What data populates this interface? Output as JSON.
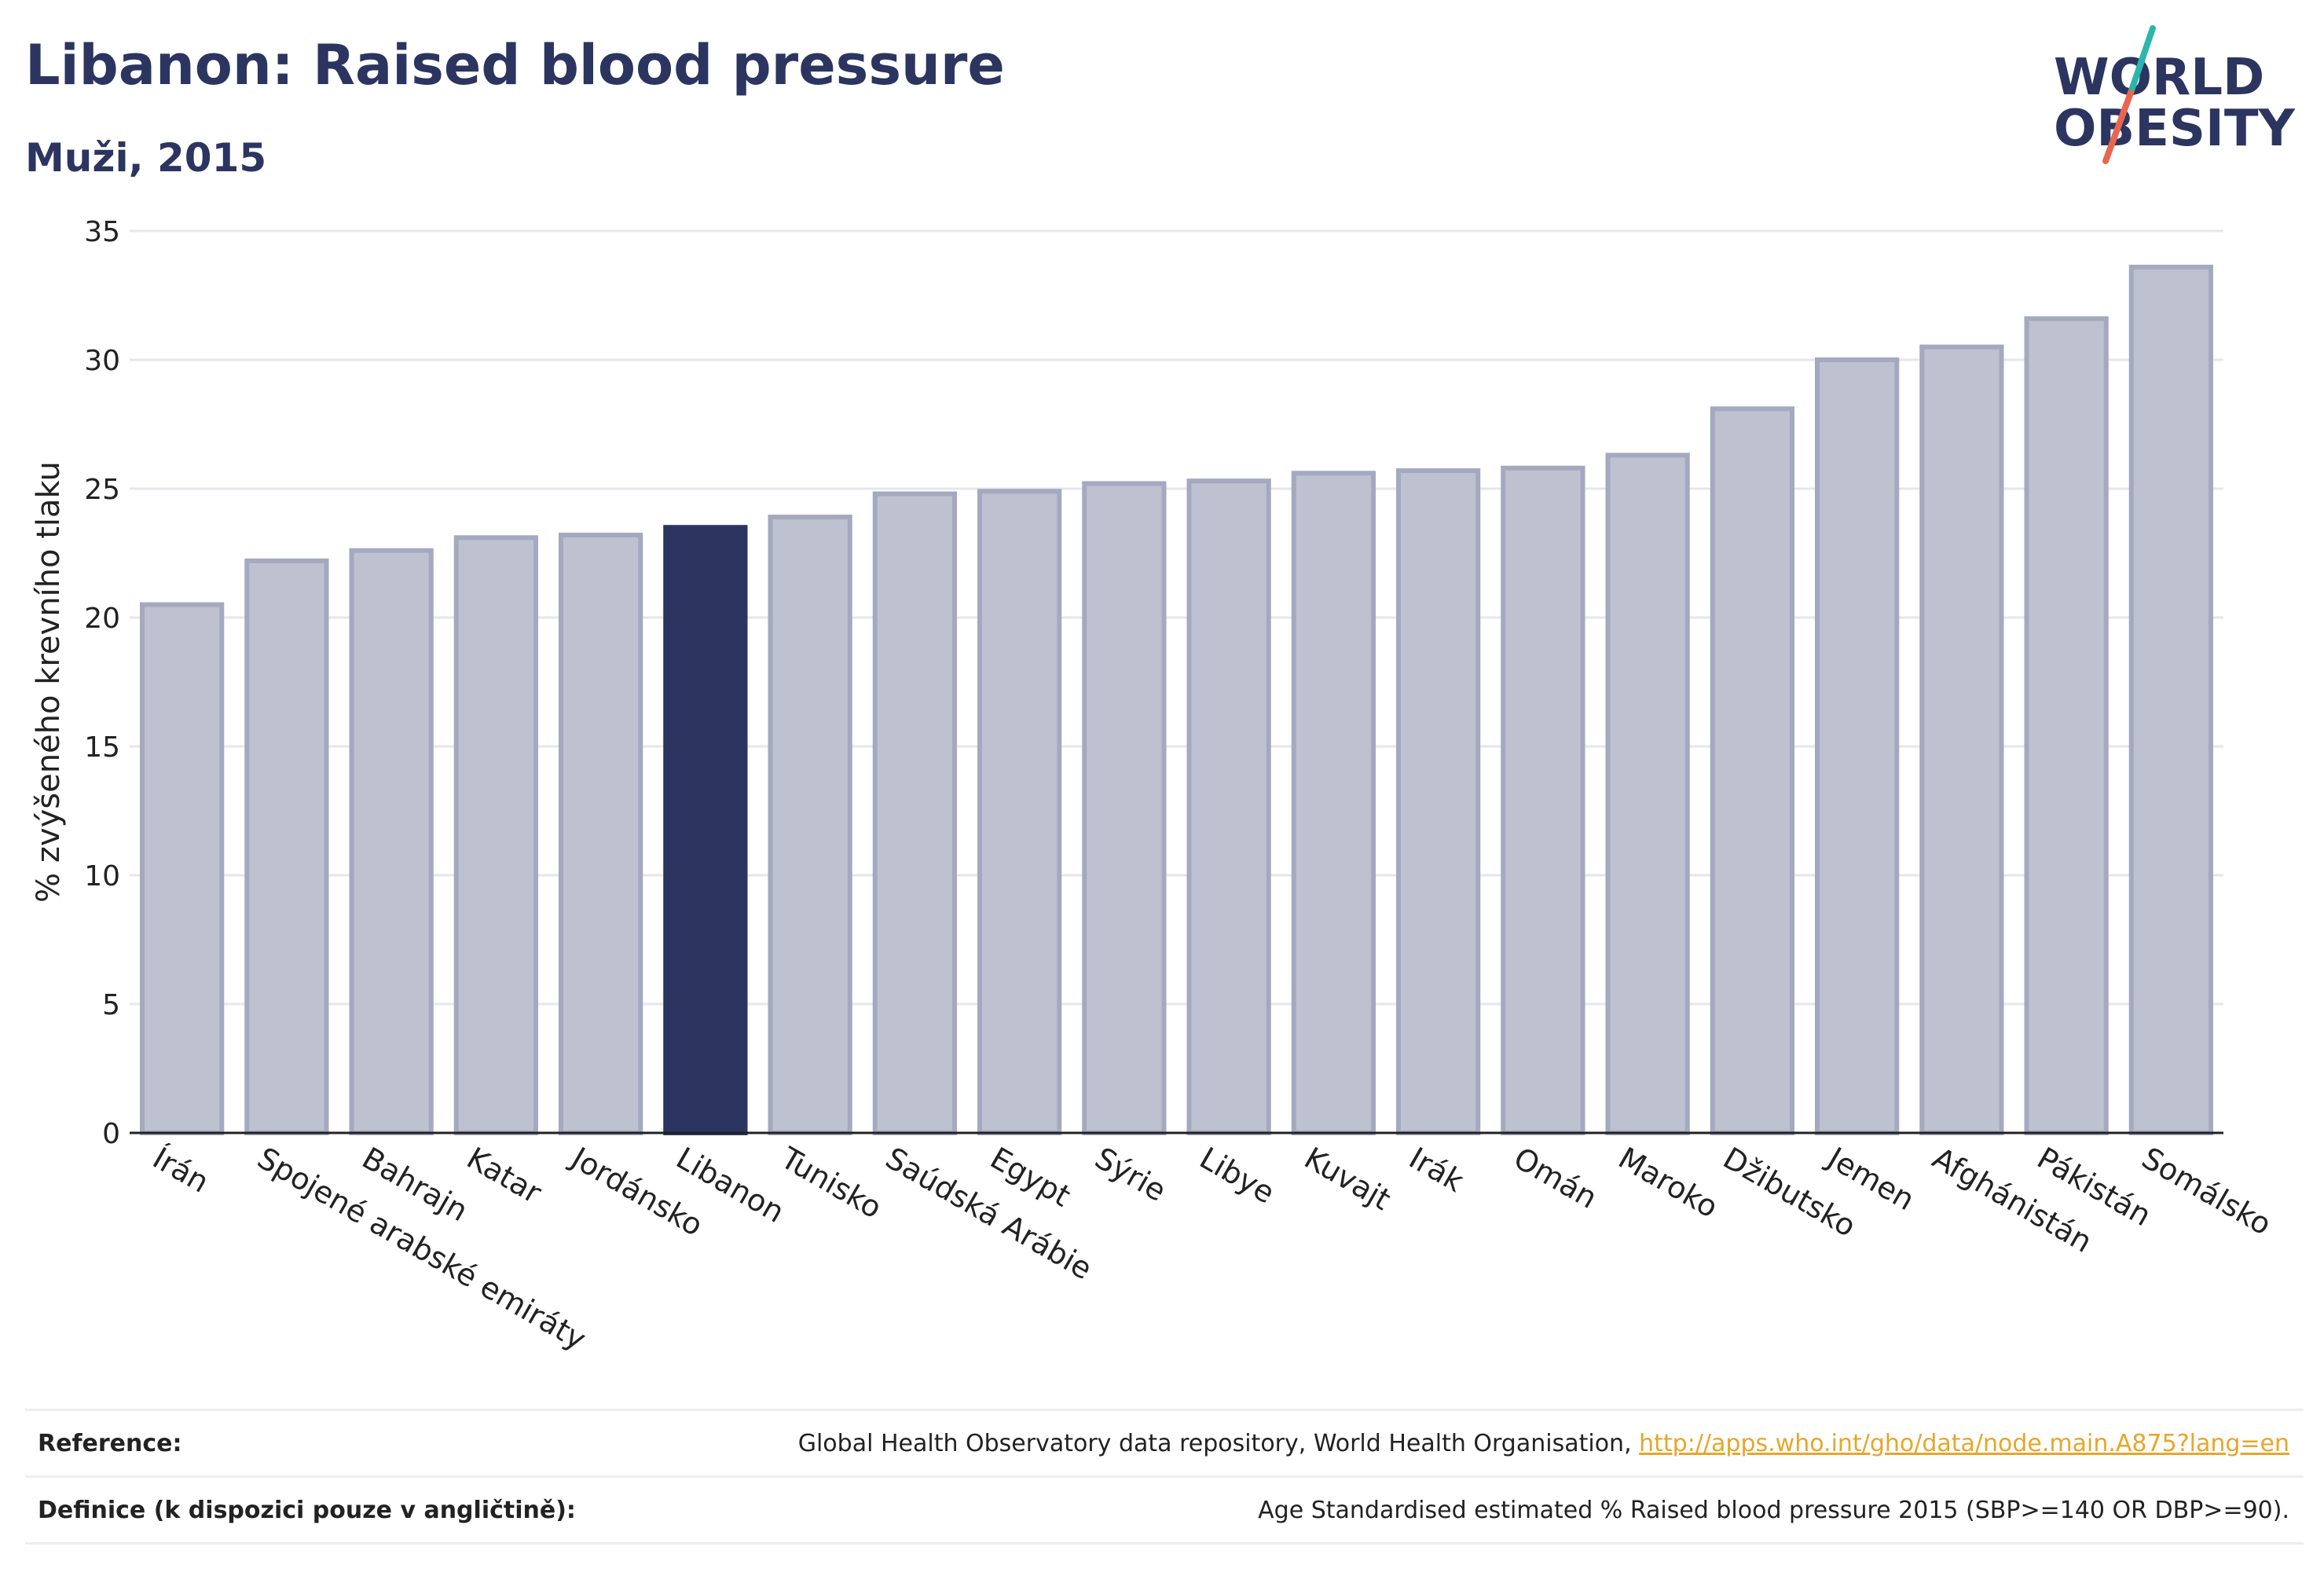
{
  "header": {
    "title": "Libanon: Raised blood pressure",
    "subtitle": "Muži, 2015"
  },
  "logo": {
    "line1": "WORLD",
    "line2": "OBESITY",
    "colors": {
      "text": "#2b3560",
      "slash_top": "#2bb5b0",
      "slash_bottom": "#e8664f"
    }
  },
  "chart_data": {
    "type": "bar",
    "title": "Libanon: Raised blood pressure",
    "subtitle": "Muži, 2015",
    "ylabel": "% zvýšeného krevního tlaku",
    "xlabel": "",
    "ylim": [
      0,
      35
    ],
    "yticks": [
      0,
      5,
      10,
      15,
      20,
      25,
      30,
      35
    ],
    "grid": true,
    "highlight_category": "Libanon",
    "colors": {
      "bar": "#bec1cf",
      "bar_edge": "#a4a9c0",
      "highlight": "#2b3560"
    },
    "categories": [
      "Írán",
      "Spojené arabské emiráty",
      "Bahrajn",
      "Katar",
      "Jordánsko",
      "Libanon",
      "Tunisko",
      "Saúdská Arábie",
      "Egypt",
      "Sýrie",
      "Libye",
      "Kuvajt",
      "Irák",
      "Omán",
      "Maroko",
      "Džibutsko",
      "Jemen",
      "Afghánistán",
      "Pákistán",
      "Somálsko"
    ],
    "values": [
      20.5,
      22.2,
      22.6,
      23.1,
      23.2,
      23.5,
      23.9,
      24.8,
      24.9,
      25.2,
      25.3,
      25.6,
      25.7,
      25.8,
      26.3,
      28.1,
      30.0,
      30.5,
      31.6,
      33.6
    ]
  },
  "footer": {
    "reference_label": "Reference:",
    "reference_text": "Global Health Observatory data repository, World Health Organisation, ",
    "reference_link": "http://apps.who.int/gho/data/node.main.A875?lang=en",
    "definition_label": "Definice (k dispozici pouze v angličtině):",
    "definition_text": "Age Standardised estimated % Raised blood pressure 2015 (SBP>=140 OR DBP>=90)."
  }
}
